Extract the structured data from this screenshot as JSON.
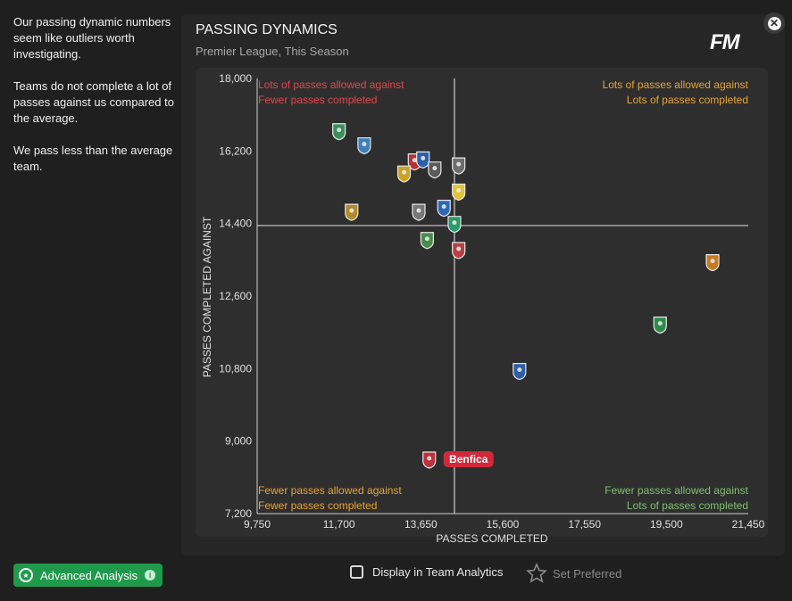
{
  "sidebar": {
    "paragraphs": [
      "Our passing dynamic numbers seem like outliers worth investigating.",
      "Teams do not complete a lot of passes against us compared to the average.",
      "We pass less than the average team."
    ]
  },
  "header": {
    "title": "PASSING DYNAMICS",
    "subtitle": "Premier League, This Season",
    "logo": "FM"
  },
  "footer": {
    "advanced_label": "Advanced Analysis",
    "display_label": "Display in Team Analytics",
    "preferred_label": "Set Preferred"
  },
  "colors": {
    "accent_green": "#1f9a4b",
    "highlight_red": "#d2283a",
    "quadrant_red": "#e0454f",
    "quadrant_orange": "#e8a332",
    "quadrant_green": "#7fbf6e"
  },
  "chart_data": {
    "type": "scatter",
    "xlabel": "PASSES COMPLETED",
    "ylabel": "PASSES COMPLETED AGAINST",
    "xlim": [
      9750,
      21450
    ],
    "ylim": [
      7200,
      18000
    ],
    "xticks": [
      "9,750",
      "11,700",
      "13,650",
      "15,600",
      "17,550",
      "19,500",
      "21,450"
    ],
    "yticks": [
      "7,200",
      "9,000",
      "10,800",
      "12,600",
      "14,400",
      "16,200",
      "18,000"
    ],
    "average_x": 14450,
    "average_y": 14350,
    "quadrants": [
      {
        "position": "top-left",
        "lines": [
          "Lots of passes allowed against",
          "Fewer passes completed"
        ],
        "color": "#e0454f"
      },
      {
        "position": "top-right",
        "lines": [
          "Lots of passes allowed against",
          "Lots of passes completed"
        ],
        "color": "#e8a332"
      },
      {
        "position": "bottom-left",
        "lines": [
          "Fewer passes allowed against",
          "Fewer passes completed"
        ],
        "color": "#e8a332"
      },
      {
        "position": "bottom-right",
        "lines": [
          "Fewer passes allowed against",
          "Lots of passes completed"
        ],
        "color": "#7fbf6e"
      }
    ],
    "points": [
      {
        "x": 11700,
        "y": 16700,
        "color": "#3a8f5a",
        "label": ""
      },
      {
        "x": 12300,
        "y": 16350,
        "color": "#3f7fb8",
        "label": ""
      },
      {
        "x": 13500,
        "y": 15950,
        "color": "#b33232",
        "label": ""
      },
      {
        "x": 13700,
        "y": 16000,
        "color": "#2b5fa8",
        "label": ""
      },
      {
        "x": 13250,
        "y": 15650,
        "color": "#c9a227",
        "label": ""
      },
      {
        "x": 13980,
        "y": 15750,
        "color": "#5a5a5a",
        "label": ""
      },
      {
        "x": 14550,
        "y": 15850,
        "color": "#6e6e6e",
        "label": ""
      },
      {
        "x": 14550,
        "y": 15200,
        "color": "#e3c33a",
        "label": ""
      },
      {
        "x": 14200,
        "y": 14800,
        "color": "#3066b5",
        "label": ""
      },
      {
        "x": 13600,
        "y": 14700,
        "color": "#777777",
        "label": ""
      },
      {
        "x": 12000,
        "y": 14700,
        "color": "#b08a2a",
        "label": ""
      },
      {
        "x": 14450,
        "y": 14400,
        "color": "#2c9a6a",
        "label": ""
      },
      {
        "x": 13800,
        "y": 14000,
        "color": "#4a8a4a",
        "label": ""
      },
      {
        "x": 14550,
        "y": 13750,
        "color": "#b84040",
        "label": ""
      },
      {
        "x": 20600,
        "y": 13450,
        "color": "#c87a20",
        "label": ""
      },
      {
        "x": 19350,
        "y": 11900,
        "color": "#2f8a4a",
        "label": ""
      },
      {
        "x": 16000,
        "y": 10750,
        "color": "#2b5fa8",
        "label": ""
      },
      {
        "x": 13850,
        "y": 8550,
        "color": "#c0303a",
        "label": "Benfica",
        "highlight": true
      }
    ]
  }
}
